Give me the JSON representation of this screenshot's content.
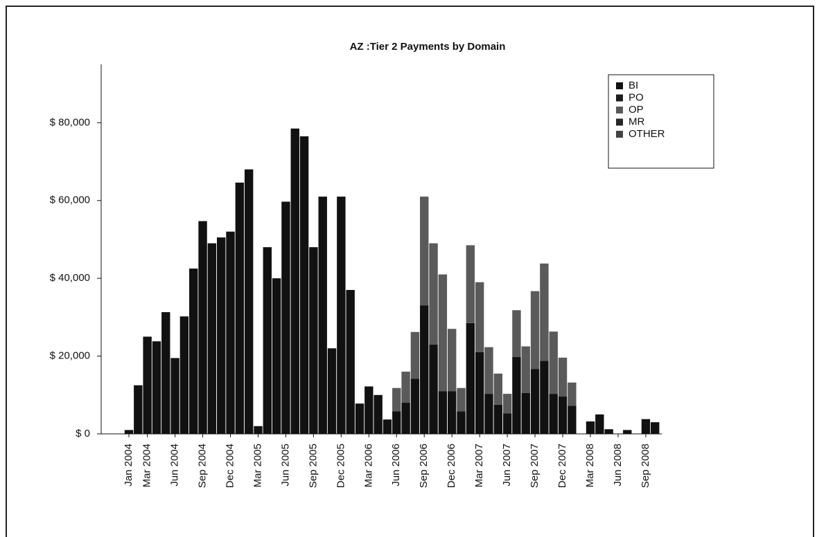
{
  "chart_data": {
    "type": "stacked_bar",
    "title": "AZ :Tier 2 Payments by Domain",
    "categories": [
      "Jan 2004",
      null,
      "Mar 2004",
      null,
      null,
      "Jun 2004",
      null,
      null,
      "Sep 2004",
      null,
      null,
      "Dec 2004",
      null,
      null,
      "Mar 2005",
      null,
      null,
      "Jun 2005",
      null,
      null,
      "Sep 2005",
      null,
      null,
      "Dec 2005",
      null,
      null,
      "Mar 2006",
      null,
      null,
      "Jun 2006",
      null,
      null,
      "Sep 2006",
      null,
      null,
      "Dec 2006",
      null,
      null,
      "Mar 2007",
      null,
      null,
      "Jun 2007",
      null,
      null,
      "Sep 2007",
      null,
      null,
      "Dec 2007",
      null,
      null,
      "Mar 2008",
      null,
      null,
      "Jun 2008",
      null,
      null,
      "Sep 2008",
      null
    ],
    "series": [
      {
        "name": "BI",
        "color": "#111111",
        "values": [
          1000,
          12500,
          25000,
          23800,
          31300,
          19500,
          30200,
          42500,
          54700,
          49000,
          50500,
          52000,
          64600,
          68000,
          2000,
          48000,
          40000,
          59700,
          78500,
          76500,
          48000,
          61000,
          22000,
          61000,
          37000,
          7800,
          12200,
          10000,
          3700,
          5800,
          8000,
          14200,
          33000,
          23000,
          11000,
          11000,
          5800,
          28500,
          21000,
          10300,
          7500,
          5300,
          19800,
          10500,
          16700,
          18800,
          10300,
          9600,
          7200,
          0,
          3200,
          5000,
          1200,
          0,
          1000,
          0,
          3800,
          3000
        ]
      },
      {
        "name": "PO",
        "color": "#1c1c1c",
        "values": [
          0,
          0,
          0,
          0,
          0,
          0,
          0,
          0,
          0,
          0,
          0,
          0,
          0,
          0,
          0,
          0,
          0,
          0,
          0,
          0,
          0,
          0,
          0,
          0,
          0,
          0,
          0,
          0,
          0,
          0,
          0,
          0,
          0,
          0,
          0,
          0,
          0,
          0,
          0,
          0,
          0,
          0,
          0,
          0,
          0,
          0,
          0,
          0,
          0,
          0,
          0,
          0,
          0,
          0,
          0,
          0,
          0,
          0
        ]
      },
      {
        "name": "OP",
        "color": "#5a5a5a",
        "values": [
          0,
          0,
          0,
          0,
          0,
          0,
          0,
          0,
          0,
          0,
          0,
          0,
          0,
          0,
          0,
          0,
          0,
          0,
          0,
          0,
          0,
          0,
          0,
          0,
          0,
          0,
          0,
          0,
          0,
          6000,
          8000,
          12000,
          28000,
          26000,
          30000,
          16000,
          6000,
          20000,
          18000,
          12000,
          8000,
          5000,
          12000,
          12000,
          20000,
          25000,
          16000,
          10000,
          6000,
          0,
          0,
          0,
          0,
          0,
          0,
          0,
          0,
          0
        ]
      },
      {
        "name": "MR",
        "color": "#262626",
        "values": [
          0,
          0,
          0,
          0,
          0,
          0,
          0,
          0,
          0,
          0,
          0,
          0,
          0,
          0,
          0,
          0,
          0,
          0,
          0,
          0,
          0,
          0,
          0,
          0,
          0,
          0,
          0,
          0,
          0,
          0,
          0,
          0,
          0,
          0,
          0,
          0,
          0,
          0,
          0,
          0,
          0,
          0,
          0,
          0,
          0,
          0,
          0,
          0,
          0,
          0,
          0,
          0,
          0,
          0,
          0,
          0,
          0,
          0
        ]
      },
      {
        "name": "OTHER",
        "color": "#444444",
        "values": [
          0,
          0,
          0,
          0,
          0,
          0,
          0,
          0,
          0,
          0,
          0,
          0,
          0,
          0,
          0,
          0,
          0,
          0,
          0,
          0,
          0,
          0,
          0,
          0,
          0,
          0,
          0,
          0,
          0,
          0,
          0,
          0,
          0,
          0,
          0,
          0,
          0,
          0,
          0,
          0,
          0,
          0,
          0,
          0,
          0,
          0,
          0,
          0,
          0,
          0,
          0,
          0,
          0,
          0,
          0,
          0,
          0,
          0
        ]
      }
    ],
    "ylim": [
      0,
      95000
    ],
    "yticks": [
      {
        "value": 0,
        "label": "$ 0"
      },
      {
        "value": 20000,
        "label": "$ 20,000"
      },
      {
        "value": 40000,
        "label": "$ 40,000"
      },
      {
        "value": 60000,
        "label": "$ 60,000"
      },
      {
        "value": 80000,
        "label": "$ 80,000"
      }
    ],
    "grid": false,
    "legend": "top-right"
  }
}
